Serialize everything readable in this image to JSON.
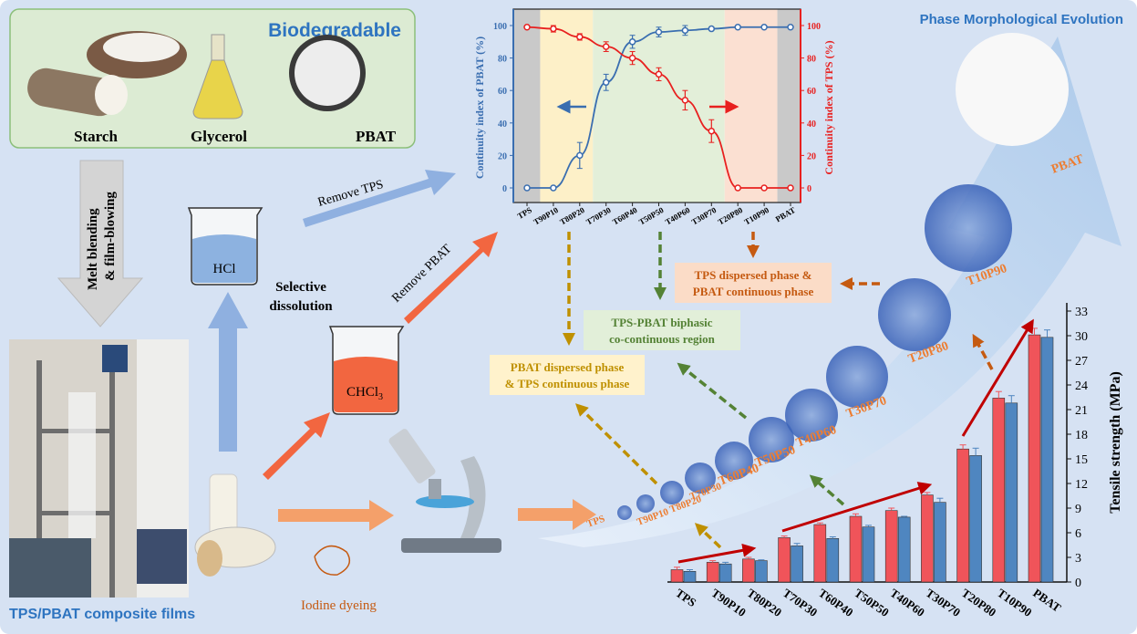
{
  "materials": {
    "title": "Biodegradable",
    "items": [
      "Starch",
      "Glycerol",
      "PBAT"
    ]
  },
  "process": {
    "melt_label_1": "Melt blending",
    "melt_label_2": "& film-blowing",
    "films_caption": "TPS/PBAT composite films",
    "hcl": "HCl",
    "chcl3": "CHCl",
    "chcl3_sub": "3",
    "selective_1": "Selective",
    "selective_2": "dissolution",
    "remove_tps": "Remove TPS",
    "remove_pbat": "Remove PBAT",
    "iodine": "Iodine dyeing"
  },
  "regions": {
    "pbat_dispersed": [
      "PBAT dispersed phase",
      "& TPS continuous phase"
    ],
    "cocontinuous": [
      "TPS-PBAT biphasic",
      "co-continuous region"
    ],
    "tps_dispersed": [
      "TPS dispersed phase &",
      "PBAT continuous phase"
    ]
  },
  "evolution": {
    "title": "Phase Morphological Evolution",
    "samples": [
      "TPS",
      "T90P10",
      "T80P20",
      "T70P30",
      "T60P40",
      "T50P50",
      "T40P60",
      "T30P70",
      "T20P80",
      "T10P90",
      "PBAT"
    ]
  },
  "colors": {
    "background": "#d6e2f3",
    "pbat_blue": "#3a6eb0",
    "tps_red": "#e8201f",
    "bar_red": "#f0545a",
    "bar_blue": "#4f86c0",
    "title_blue": "#2e74c0",
    "orange": "#c55a11",
    "green": "#548235",
    "gold": "#bf9000"
  },
  "chart_data": [
    {
      "type": "line",
      "categories": [
        "TPS",
        "T90P10",
        "T80P20",
        "T70P30",
        "T60P40",
        "T50P50",
        "T40P60",
        "T30P70",
        "T20P80",
        "T10P90",
        "PBAT"
      ],
      "ylabel": "Continuity index of PBAT (%)",
      "y2label": "Continuity index of TPS (%)",
      "ylim": [
        -12,
        110
      ],
      "yticks": [
        0,
        20,
        40,
        60,
        80,
        100
      ],
      "series": [
        {
          "axis": "left",
          "color": "#3a6eb0",
          "values": [
            0,
            0,
            20,
            65,
            90,
            96,
            97,
            98,
            99,
            99,
            99
          ],
          "errors": [
            0,
            0,
            8,
            5,
            4,
            3,
            3,
            1,
            0,
            0,
            0
          ]
        },
        {
          "axis": "right",
          "color": "#e8201f",
          "values": [
            99,
            98,
            93,
            87,
            80,
            70,
            54,
            35,
            0,
            0,
            0
          ],
          "errors": [
            0,
            2,
            2,
            3,
            4,
            4,
            6,
            7,
            0,
            0,
            0
          ]
        }
      ],
      "bands": [
        {
          "from": "TPS",
          "to": "TPS",
          "color": "#c9c9c9"
        },
        {
          "from": "T90P10",
          "to": "T80P20",
          "color": "#fdf0c8"
        },
        {
          "from": "T70P30",
          "to": "T30P70",
          "color": "#e3efd9"
        },
        {
          "from": "T20P80",
          "to": "T10P90",
          "color": "#fbe0d2"
        },
        {
          "from": "PBAT",
          "to": "PBAT",
          "color": "#c9c9c9"
        }
      ]
    },
    {
      "type": "bar",
      "categories": [
        "TPS",
        "T90P10",
        "T80P20",
        "T70P30",
        "T60P40",
        "T50P50",
        "T40P60",
        "T30P70",
        "T20P80",
        "T10P90",
        "PBAT"
      ],
      "ylabel": "Tensile strength (MPa)",
      "ylim": [
        0,
        34
      ],
      "yticks": [
        0,
        3,
        6,
        9,
        12,
        15,
        18,
        21,
        24,
        27,
        30,
        33
      ],
      "series": [
        {
          "color": "#f0545a",
          "values": [
            1.5,
            2.4,
            2.8,
            5.4,
            7.0,
            8.0,
            8.7,
            10.6,
            16.2,
            22.4,
            30.1
          ],
          "errors": [
            0.3,
            0.2,
            0.2,
            0.2,
            0.2,
            0.3,
            0.3,
            0.3,
            0.5,
            0.8,
            0.8
          ]
        },
        {
          "color": "#4f86c0",
          "values": [
            1.3,
            2.2,
            2.6,
            4.4,
            5.3,
            6.7,
            7.9,
            9.7,
            15.4,
            21.8,
            29.8
          ],
          "errors": [
            0.2,
            0.2,
            0.1,
            0.3,
            0.2,
            0.2,
            0.1,
            0.5,
            0.9,
            0.9,
            0.9
          ]
        }
      ]
    }
  ]
}
